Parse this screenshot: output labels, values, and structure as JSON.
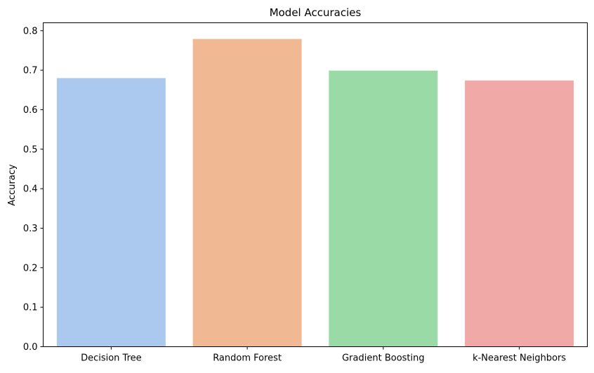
{
  "chart_data": {
    "type": "bar",
    "title": "Model Accuracies",
    "xlabel": "",
    "ylabel": "Accuracy",
    "categories": [
      "Decision Tree",
      "Random Forest",
      "Gradient Boosting",
      "k-Nearest Neighbors"
    ],
    "values": [
      0.68,
      0.779,
      0.699,
      0.674
    ],
    "colors": [
      "#abc9ee",
      "#f0b893",
      "#99daa6",
      "#f1a9a8"
    ],
    "ylim": [
      0,
      0.82
    ],
    "yticks": [
      0.0,
      0.1,
      0.2,
      0.3,
      0.4,
      0.5,
      0.6,
      0.7,
      0.8
    ],
    "ytick_labels": [
      "0.0",
      "0.1",
      "0.2",
      "0.3",
      "0.4",
      "0.5",
      "0.6",
      "0.7",
      "0.8"
    ],
    "grid": false,
    "legend": "none"
  }
}
